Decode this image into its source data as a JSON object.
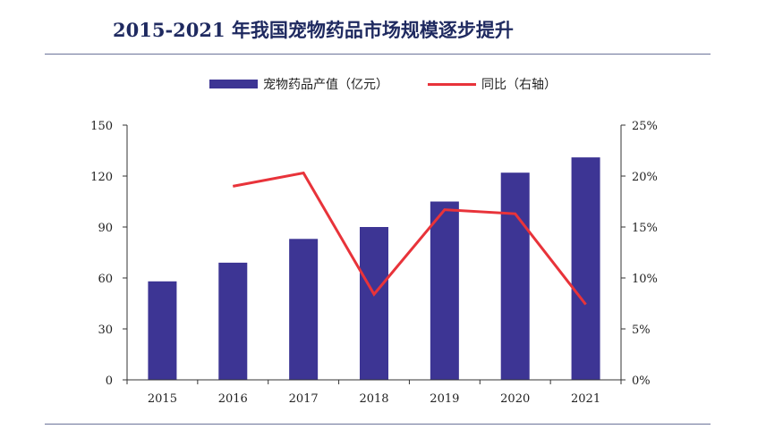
{
  "title": "2015-2021 年我国宠物药品市场规模逐步提升",
  "colors": {
    "bar": "#3d3594",
    "line": "#e8333a",
    "title": "#1f2a60"
  },
  "chart_data": {
    "type": "bar",
    "categories": [
      "2015",
      "2016",
      "2017",
      "2018",
      "2019",
      "2020",
      "2021"
    ],
    "series": [
      {
        "name": "宠物药品产值（亿元）",
        "type": "bar",
        "axis": "left",
        "values": [
          58,
          69,
          83,
          90,
          105,
          122,
          131
        ]
      },
      {
        "name": "同比（右轴）",
        "type": "line",
        "axis": "right",
        "values": [
          null,
          19.0,
          20.3,
          8.4,
          16.7,
          16.3,
          7.4
        ]
      }
    ],
    "left_axis": {
      "min": 0,
      "max": 150,
      "ticks": [
        "0",
        "30",
        "60",
        "90",
        "120",
        "150"
      ]
    },
    "right_axis": {
      "min": 0,
      "max": 25,
      "ticks": [
        "0%",
        "5%",
        "10%",
        "15%",
        "20%",
        "25%"
      ]
    },
    "legend": "top-center",
    "grid": false
  }
}
